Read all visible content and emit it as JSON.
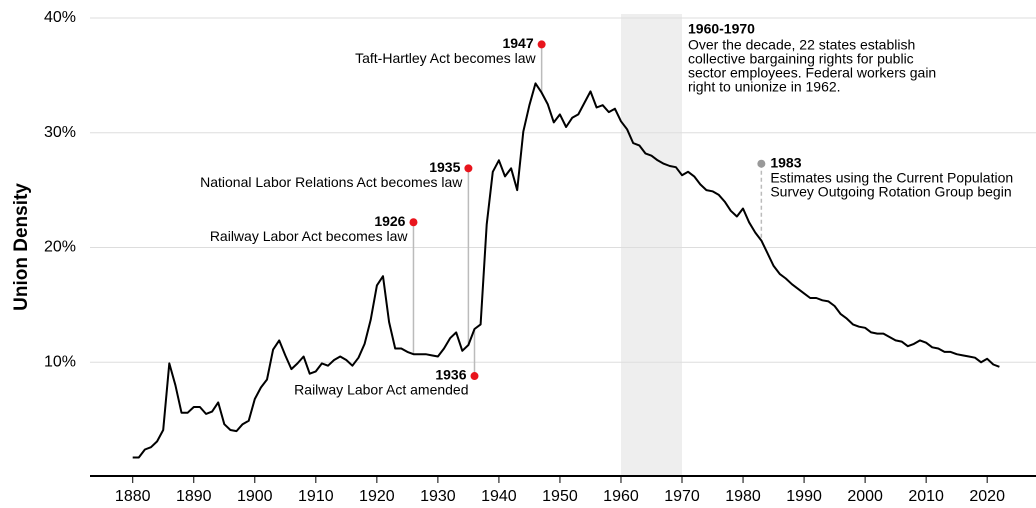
{
  "chart_data": {
    "type": "line",
    "ylabel": "Union Density",
    "x": [
      1880,
      1881,
      1882,
      1883,
      1884,
      1885,
      1886,
      1887,
      1888,
      1889,
      1890,
      1891,
      1892,
      1893,
      1894,
      1895,
      1896,
      1897,
      1898,
      1899,
      1900,
      1901,
      1902,
      1903,
      1904,
      1905,
      1906,
      1907,
      1908,
      1909,
      1910,
      1911,
      1912,
      1913,
      1914,
      1915,
      1916,
      1917,
      1918,
      1919,
      1920,
      1921,
      1922,
      1923,
      1924,
      1925,
      1926,
      1927,
      1928,
      1929,
      1930,
      1931,
      1932,
      1933,
      1934,
      1935,
      1936,
      1937,
      1938,
      1939,
      1940,
      1941,
      1942,
      1943,
      1944,
      1945,
      1946,
      1947,
      1948,
      1949,
      1950,
      1951,
      1952,
      1953,
      1954,
      1955,
      1956,
      1957,
      1958,
      1959,
      1960,
      1961,
      1962,
      1963,
      1964,
      1965,
      1966,
      1967,
      1968,
      1969,
      1970,
      1971,
      1972,
      1973,
      1974,
      1975,
      1976,
      1977,
      1978,
      1979,
      1980,
      1981,
      1982,
      1983,
      1984,
      1985,
      1986,
      1987,
      1988,
      1989,
      1990,
      1991,
      1992,
      1993,
      1994,
      1995,
      1996,
      1997,
      1998,
      1999,
      2000,
      2001,
      2002,
      2003,
      2004,
      2005,
      2006,
      2007,
      2008,
      2009,
      2010,
      2011,
      2012,
      2013,
      2014,
      2015,
      2016,
      2017,
      2018,
      2019,
      2020,
      2021,
      2022
    ],
    "values": [
      1.7,
      1.7,
      2.4,
      2.6,
      3.1,
      4.1,
      9.9,
      8.0,
      5.6,
      5.6,
      6.1,
      6.1,
      5.5,
      5.7,
      6.5,
      4.6,
      4.1,
      4.0,
      4.6,
      4.9,
      6.8,
      7.8,
      8.5,
      11.1,
      11.9,
      10.6,
      9.4,
      9.9,
      10.5,
      9.0,
      9.2,
      9.9,
      9.7,
      10.2,
      10.5,
      10.2,
      9.7,
      10.4,
      11.6,
      13.7,
      16.7,
      17.5,
      13.5,
      11.2,
      11.2,
      10.9,
      10.7,
      10.7,
      10.7,
      10.6,
      10.5,
      11.2,
      12.1,
      12.6,
      11.0,
      11.5,
      12.9,
      13.3,
      22.0,
      26.6,
      27.6,
      26.2,
      26.9,
      25.0,
      30.1,
      32.4,
      34.3,
      33.5,
      32.5,
      30.9,
      31.6,
      30.5,
      31.3,
      31.6,
      32.6,
      33.6,
      32.2,
      32.4,
      31.8,
      32.1,
      31.0,
      30.3,
      29.1,
      28.9,
      28.2,
      28.0,
      27.6,
      27.3,
      27.1,
      27.0,
      26.3,
      26.6,
      26.2,
      25.5,
      25.0,
      24.9,
      24.6,
      24.0,
      23.2,
      22.7,
      23.4,
      22.2,
      21.3,
      20.6,
      19.5,
      18.4,
      17.7,
      17.3,
      16.8,
      16.4,
      16.0,
      15.6,
      15.6,
      15.4,
      15.3,
      14.9,
      14.2,
      13.8,
      13.3,
      13.1,
      13.0,
      12.6,
      12.5,
      12.5,
      12.2,
      11.9,
      11.8,
      11.4,
      11.6,
      11.9,
      11.7,
      11.3,
      11.2,
      10.9,
      10.9,
      10.7,
      10.6,
      10.5,
      10.4,
      10.0,
      10.3,
      9.8,
      9.6
    ],
    "color": "#000000",
    "xlim": [
      1873,
      2028
    ],
    "xticks": [
      1880,
      1890,
      1900,
      1910,
      1920,
      1930,
      1940,
      1950,
      1960,
      1970,
      1980,
      1990,
      2000,
      2010,
      2020
    ],
    "ylim": [
      0,
      40
    ],
    "yticks": [
      {
        "value": 10,
        "label": "10%"
      },
      {
        "value": 20,
        "label": "20%"
      },
      {
        "value": 30,
        "label": "30%"
      },
      {
        "value": 40,
        "label": "40%"
      }
    ],
    "grid": true,
    "shade": {
      "from": 1960,
      "to": 1970,
      "color": "#eeeeee",
      "label": "1960-1970",
      "text": [
        "Over the decade, 22 states establish",
        "collective bargaining rights for public",
        "sector employees. Federal workers gain",
        "right to unionize in 1962."
      ]
    },
    "annotations": [
      {
        "x": 1947,
        "y": 37.7,
        "label": "1947",
        "text": [
          "Taft-Hartley Act becomes law"
        ],
        "color": "#e8141c",
        "side": "left"
      },
      {
        "x": 1935,
        "y": 26.9,
        "label": "1935",
        "text": [
          "National Labor Relations Act becomes law"
        ],
        "color": "#e8141c",
        "side": "left"
      },
      {
        "x": 1926,
        "y": 22.2,
        "label": "1926",
        "text": [
          "Railway Labor Act becomes law"
        ],
        "color": "#e8141c",
        "side": "left"
      },
      {
        "x": 1936,
        "y": 8.8,
        "label": "1936",
        "text": [
          "Railway Labor Act amended"
        ],
        "color": "#e8141c",
        "side": "left"
      },
      {
        "x": 1983,
        "y": 27.3,
        "label": "1983",
        "text": [
          "Estimates using the Current Population",
          "Survey Outgoing Rotation Group begin"
        ],
        "color": "#999999",
        "side": "right",
        "dashed": true
      }
    ]
  }
}
